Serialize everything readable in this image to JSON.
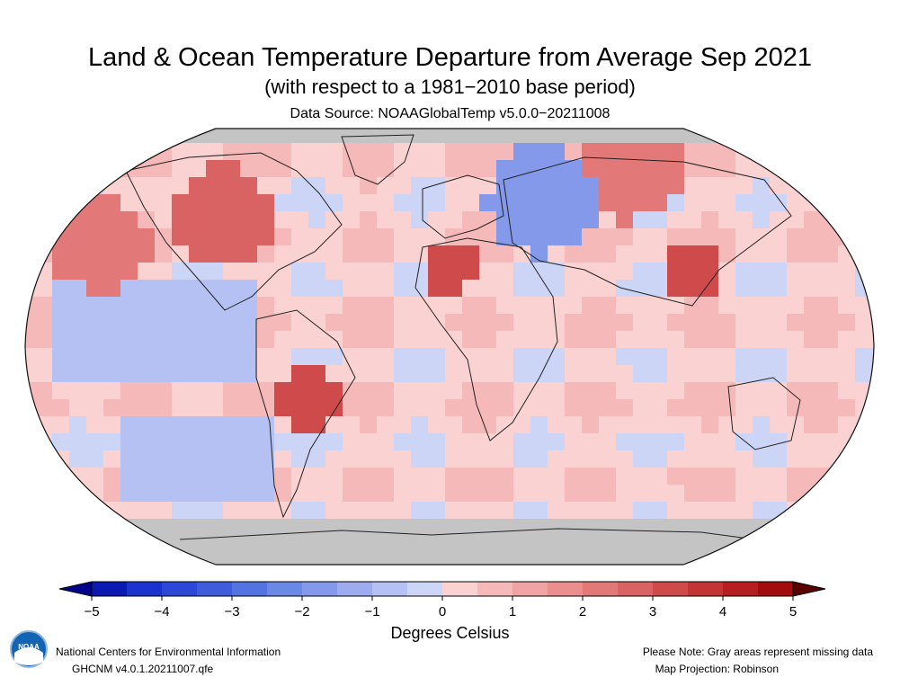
{
  "header": {
    "title": "Land & Ocean Temperature Departure from Average Sep 2021",
    "subtitle": "(with respect to a 1981−2010 base period)",
    "source": "Data Source: NOAAGlobalTemp v5.0.0−20211008"
  },
  "colorbar": {
    "title": "Degrees Celsius",
    "ticks": [
      "−5",
      "−4",
      "−3",
      "−2",
      "−1",
      "0",
      "1",
      "2",
      "3",
      "4",
      "5"
    ],
    "tick_values": [
      -5,
      -4,
      -3,
      -2,
      -1,
      0,
      1,
      2,
      3,
      4,
      5
    ],
    "range": [
      -5,
      5
    ],
    "bin_step": 0.5,
    "colors": [
      "#0a1ab3",
      "#1a33cc",
      "#2b48d6",
      "#3d5ddc",
      "#5274e0",
      "#6a88e6",
      "#8499ea",
      "#9dacee",
      "#b6c1f3",
      "#cdd5f7",
      "#fbd2d2",
      "#f6b9b9",
      "#f0a3a3",
      "#ea8e8e",
      "#e27878",
      "#d96262",
      "#cf4b4b",
      "#c33434",
      "#b51f1f",
      "#a10c0c"
    ],
    "low_end_color": "#00008b",
    "high_end_color": "#5a0000"
  },
  "map": {
    "projection_label": "Map Projection: Robinson",
    "missing_color": "#c4c4c4",
    "anomaly_regions": [
      {
        "name": "Arctic/Antarctic gaps",
        "value": null
      },
      {
        "name": "North Pacific",
        "value": 2.2
      },
      {
        "name": "Eastern Canada",
        "value": 2.8
      },
      {
        "name": "Western Russia",
        "value": -1.6
      },
      {
        "name": "Eastern Siberia",
        "value": 2.4
      },
      {
        "name": "Northwest Africa",
        "value": 3.0
      },
      {
        "name": "Central South America",
        "value": 3.2
      },
      {
        "name": "Eastern China",
        "value": 3.4
      },
      {
        "name": "Eastern Equatorial Pacific",
        "value": -0.7
      },
      {
        "name": "Southeast Pacific",
        "value": -0.8
      }
    ]
  },
  "footer": {
    "org": "National Centers for Environmental Information",
    "version": "GHCNM v4.0.1.20211007.qfe",
    "note": "Please Note: Gray areas represent missing data",
    "projection": "Map Projection: Robinson",
    "logo_text": "NOAA",
    "logo_colors": {
      "blue": "#1464b4",
      "white": "#ffffff"
    }
  }
}
